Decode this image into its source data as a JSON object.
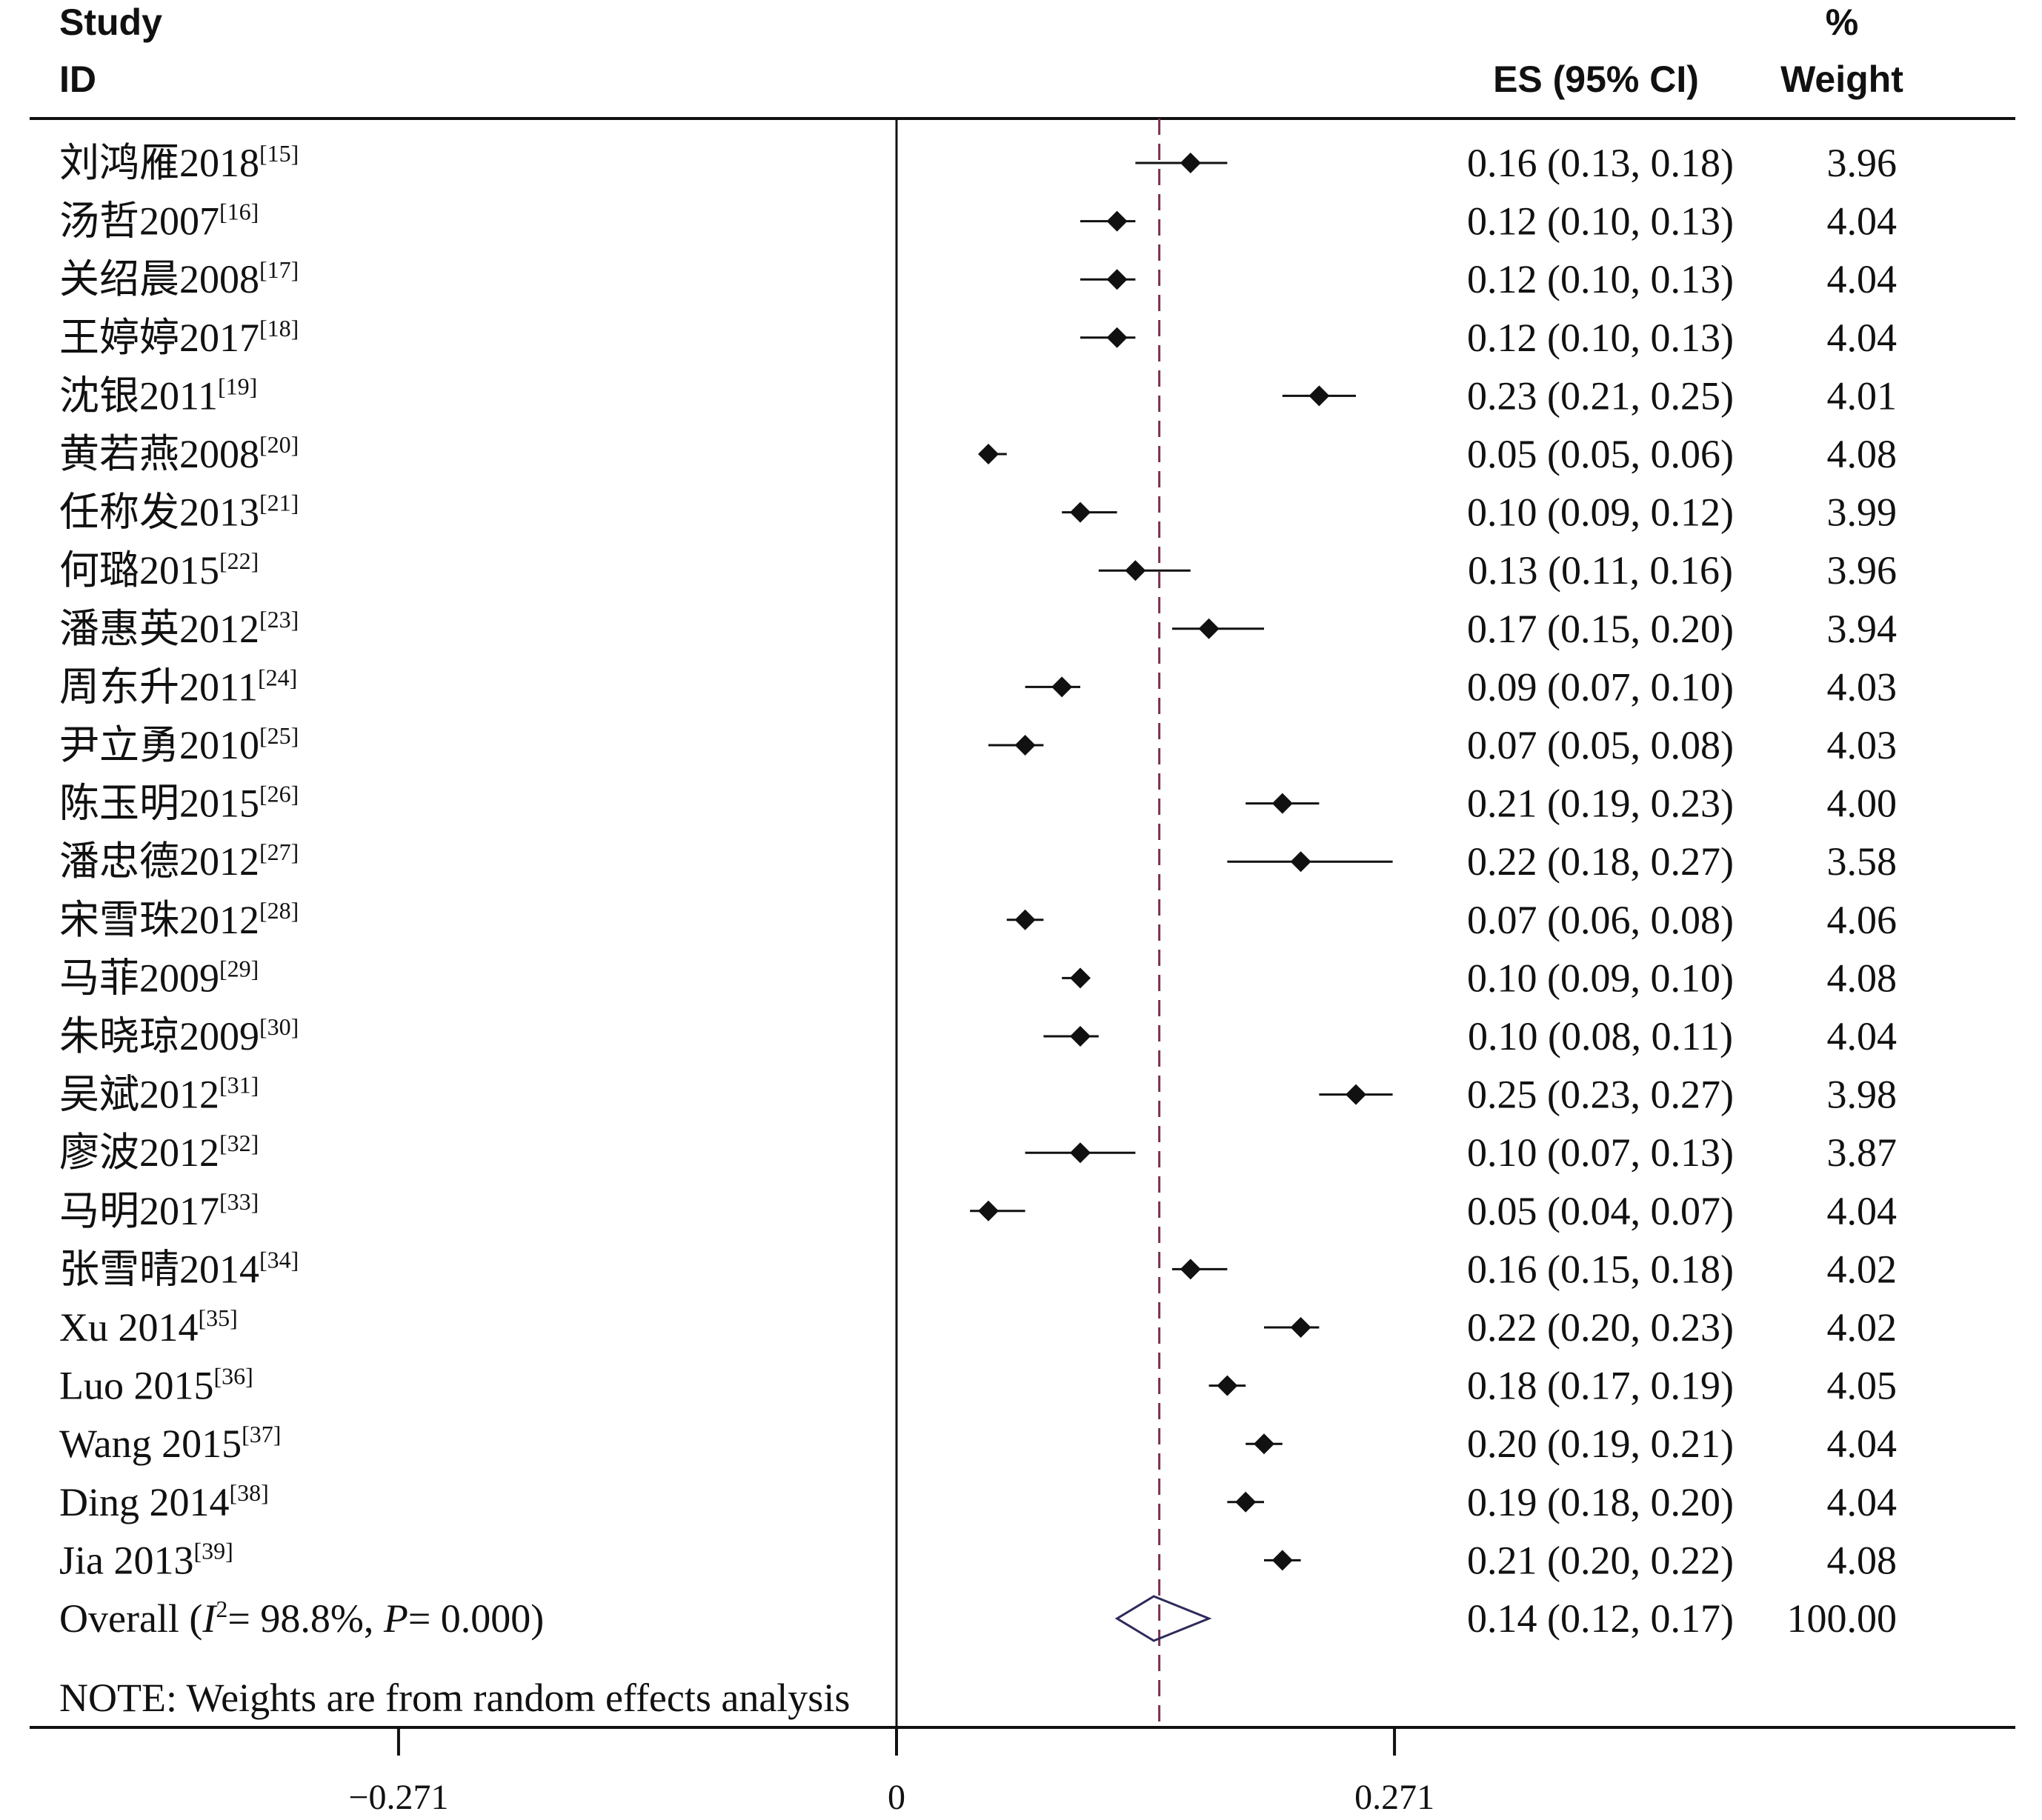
{
  "chart_data": {
    "type": "forest",
    "headers": {
      "study_line1": "Study",
      "study_line2": "ID",
      "es": "ES (95% CI)",
      "weight_line1": "%",
      "weight_line2": "Weight"
    },
    "studies": [
      {
        "name": "刘鸿雁2018",
        "ref": "[15]",
        "es": 0.16,
        "lo": 0.13,
        "hi": 0.18,
        "ci_text": "0.16 (0.13, 0.18)",
        "weight": "3.96"
      },
      {
        "name": "汤哲2007",
        "ref": "[16]",
        "es": 0.12,
        "lo": 0.1,
        "hi": 0.13,
        "ci_text": "0.12 (0.10, 0.13)",
        "weight": "4.04"
      },
      {
        "name": "关绍晨2008",
        "ref": "[17]",
        "es": 0.12,
        "lo": 0.1,
        "hi": 0.13,
        "ci_text": "0.12 (0.10, 0.13)",
        "weight": "4.04"
      },
      {
        "name": "王婷婷2017",
        "ref": "[18]",
        "es": 0.12,
        "lo": 0.1,
        "hi": 0.13,
        "ci_text": "0.12 (0.10, 0.13)",
        "weight": "4.04"
      },
      {
        "name": "沈银2011",
        "ref": "[19]",
        "es": 0.23,
        "lo": 0.21,
        "hi": 0.25,
        "ci_text": "0.23 (0.21, 0.25)",
        "weight": "4.01"
      },
      {
        "name": "黄若燕2008",
        "ref": "[20]",
        "es": 0.05,
        "lo": 0.05,
        "hi": 0.06,
        "ci_text": "0.05 (0.05, 0.06)",
        "weight": "4.08"
      },
      {
        "name": "任称发2013",
        "ref": "[21]",
        "es": 0.1,
        "lo": 0.09,
        "hi": 0.12,
        "ci_text": "0.10 (0.09, 0.12)",
        "weight": "3.99"
      },
      {
        "name": "何璐2015",
        "ref": "[22]",
        "es": 0.13,
        "lo": 0.11,
        "hi": 0.16,
        "ci_text": "0.13 (0.11, 0.16)",
        "weight": "3.96"
      },
      {
        "name": "潘惠英2012",
        "ref": "[23]",
        "es": 0.17,
        "lo": 0.15,
        "hi": 0.2,
        "ci_text": "0.17 (0.15, 0.20)",
        "weight": "3.94"
      },
      {
        "name": "周东升2011",
        "ref": "[24]",
        "es": 0.09,
        "lo": 0.07,
        "hi": 0.1,
        "ci_text": "0.09 (0.07, 0.10)",
        "weight": "4.03"
      },
      {
        "name": "尹立勇2010",
        "ref": "[25]",
        "es": 0.07,
        "lo": 0.05,
        "hi": 0.08,
        "ci_text": "0.07 (0.05, 0.08)",
        "weight": "4.03"
      },
      {
        "name": "陈玉明2015",
        "ref": "[26]",
        "es": 0.21,
        "lo": 0.19,
        "hi": 0.23,
        "ci_text": "0.21 (0.19, 0.23)",
        "weight": "4.00"
      },
      {
        "name": "潘忠德2012",
        "ref": "[27]",
        "es": 0.22,
        "lo": 0.18,
        "hi": 0.27,
        "ci_text": "0.22 (0.18, 0.27)",
        "weight": "3.58"
      },
      {
        "name": "宋雪珠2012",
        "ref": "[28]",
        "es": 0.07,
        "lo": 0.06,
        "hi": 0.08,
        "ci_text": "0.07 (0.06, 0.08)",
        "weight": "4.06"
      },
      {
        "name": "马菲2009",
        "ref": "[29]",
        "es": 0.1,
        "lo": 0.09,
        "hi": 0.1,
        "ci_text": "0.10 (0.09, 0.10)",
        "weight": "4.08"
      },
      {
        "name": "朱晓琼2009",
        "ref": "[30]",
        "es": 0.1,
        "lo": 0.08,
        "hi": 0.11,
        "ci_text": "0.10 (0.08, 0.11)",
        "weight": "4.04"
      },
      {
        "name": "吴斌2012",
        "ref": "[31]",
        "es": 0.25,
        "lo": 0.23,
        "hi": 0.27,
        "ci_text": "0.25 (0.23, 0.27)",
        "weight": "3.98"
      },
      {
        "name": "廖波2012",
        "ref": "[32]",
        "es": 0.1,
        "lo": 0.07,
        "hi": 0.13,
        "ci_text": "0.10 (0.07, 0.13)",
        "weight": "3.87"
      },
      {
        "name": "马明2017",
        "ref": "[33]",
        "es": 0.05,
        "lo": 0.04,
        "hi": 0.07,
        "ci_text": "0.05 (0.04, 0.07)",
        "weight": "4.04"
      },
      {
        "name": "张雪晴2014",
        "ref": "[34]",
        "es": 0.16,
        "lo": 0.15,
        "hi": 0.18,
        "ci_text": "0.16 (0.15, 0.18)",
        "weight": "4.02"
      },
      {
        "name": "Xu 2014",
        "ref": "[35]",
        "es": 0.22,
        "lo": 0.2,
        "hi": 0.23,
        "ci_text": "0.22 (0.20, 0.23)",
        "weight": "4.02"
      },
      {
        "name": "Luo 2015",
        "ref": "[36]",
        "es": 0.18,
        "lo": 0.17,
        "hi": 0.19,
        "ci_text": "0.18 (0.17, 0.19)",
        "weight": "4.05"
      },
      {
        "name": "Wang 2015",
        "ref": "[37]",
        "es": 0.2,
        "lo": 0.19,
        "hi": 0.21,
        "ci_text": "0.20 (0.19, 0.21)",
        "weight": "4.04"
      },
      {
        "name": "Ding 2014",
        "ref": "[38]",
        "es": 0.19,
        "lo": 0.18,
        "hi": 0.2,
        "ci_text": "0.19 (0.18, 0.20)",
        "weight": "4.04"
      },
      {
        "name": "Jia 2013",
        "ref": "[39]",
        "es": 0.21,
        "lo": 0.2,
        "hi": 0.22,
        "ci_text": "0.21 (0.20, 0.22)",
        "weight": "4.08"
      }
    ],
    "overall": {
      "label_prefix": "Overall  (",
      "i_symbol": "I",
      "i_sup": "2",
      "i_value": "= 98.8%, ",
      "p_symbol": "P",
      "p_value": "= 0.000)",
      "es": 0.14,
      "lo": 0.12,
      "hi": 0.17,
      "ci_text": "0.14 (0.12, 0.17)",
      "weight": "100.00"
    },
    "note": "NOTE: Weights are from random effects analysis",
    "x_ticks": [
      {
        "value": -0.271,
        "label": "−0.271"
      },
      {
        "value": 0,
        "label": "0"
      },
      {
        "value": 0.271,
        "label": "0.271"
      }
    ],
    "null_line": 0,
    "overall_line": 0.143,
    "colors": {
      "ink": "#111111",
      "overall_line": "#7a3050",
      "overall_diamond": "#2d2a5a"
    }
  }
}
